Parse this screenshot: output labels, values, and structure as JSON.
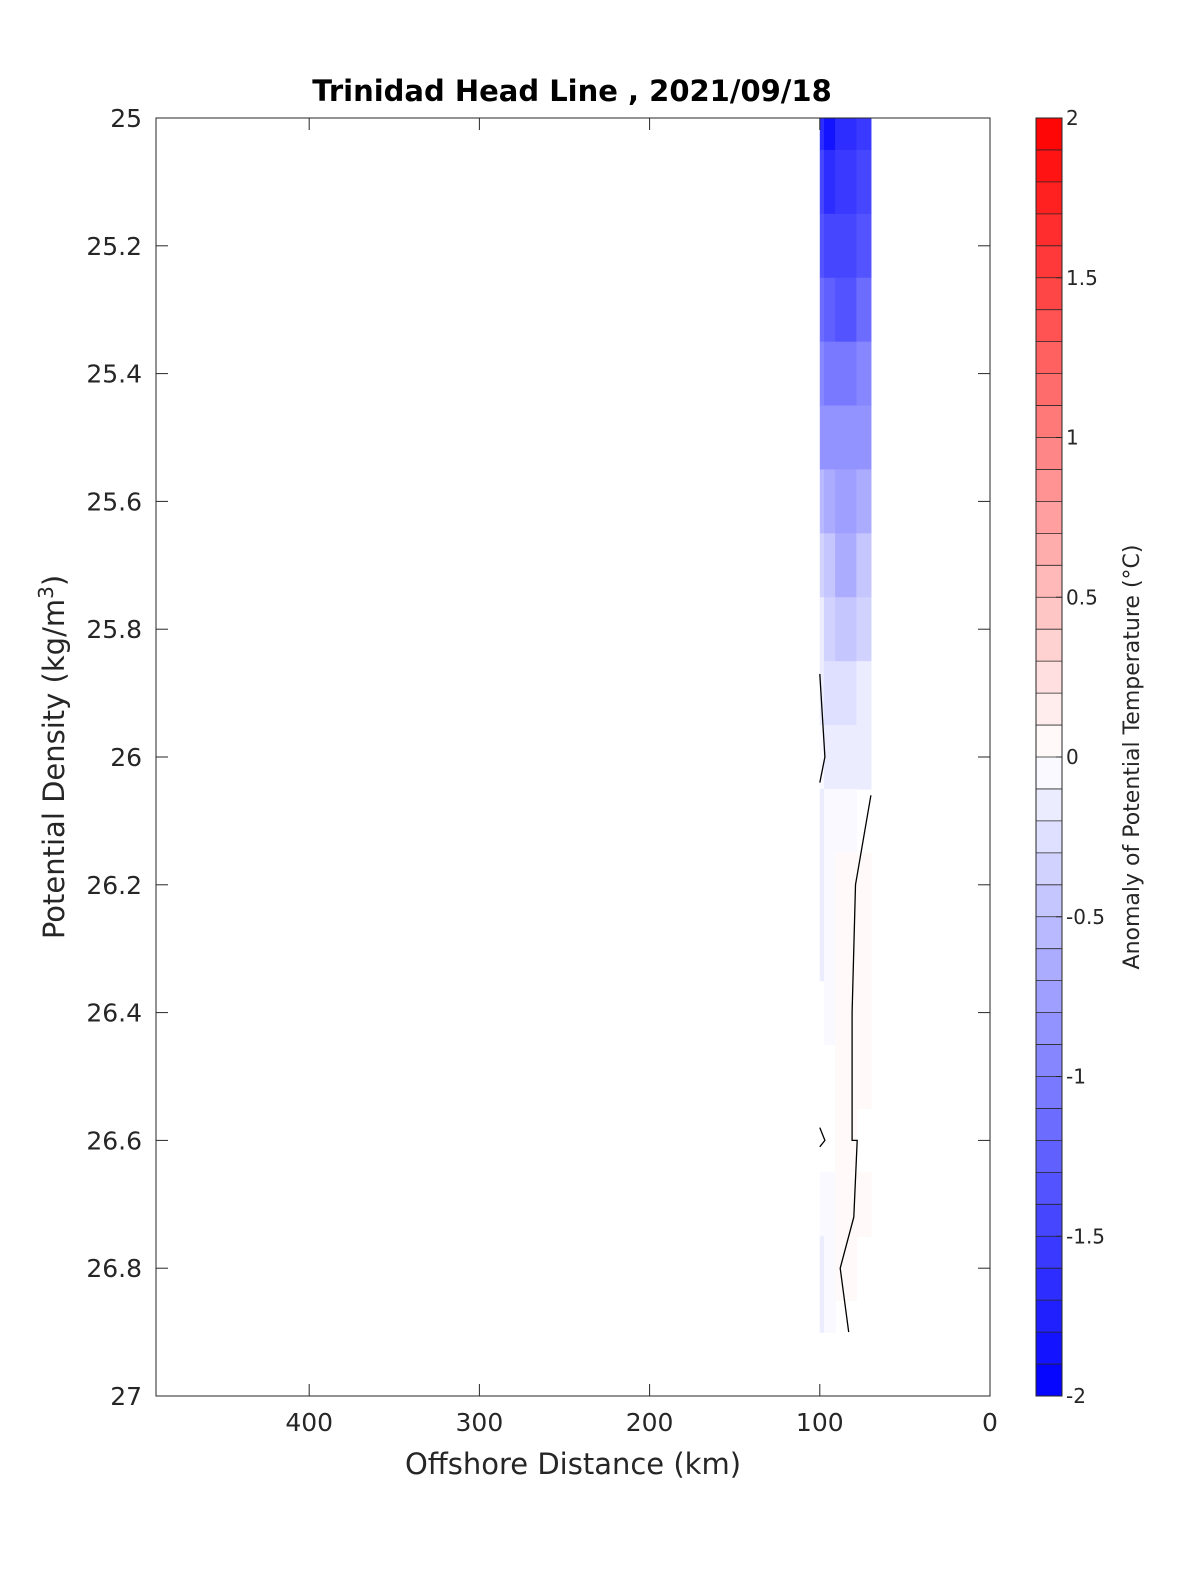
{
  "chart_data": {
    "type": "heatmap",
    "title": "Trinidad Head Line , 2021/09/18",
    "xlabel": "Offshore Distance (km)",
    "ylabel": "Potential Density (kg/m",
    "ylabel_sup": "3",
    "ylabel_close": ")",
    "xlim": [
      490,
      0
    ],
    "ylim": [
      25,
      27
    ],
    "x_reversed": true,
    "y_reversed": true,
    "x_ticks": [
      400,
      300,
      200,
      100,
      0
    ],
    "y_ticks": [
      25,
      25.2,
      25.4,
      25.6,
      25.8,
      26,
      26.2,
      26.4,
      26.6,
      26.8,
      27
    ],
    "colorbar": {
      "label": "Anomaly of Potential Temperature (°C)",
      "range": [
        -2,
        2
      ],
      "levels": 40,
      "ticks": [
        -2,
        -1.5,
        -1,
        -0.5,
        0,
        0.5,
        1,
        1.5,
        2
      ],
      "cold_color": "#0000ff",
      "warm_color": "#ff0000"
    },
    "grid": false,
    "anomaly_field": {
      "x_columns": [
        100,
        95,
        87,
        70
      ],
      "rows": [
        {
          "density": 25.0,
          "values": [
            -1.6,
            -1.9,
            -1.7,
            -1.55
          ]
        },
        {
          "density": 25.1,
          "values": [
            -1.5,
            -1.6,
            -1.55,
            -1.45
          ]
        },
        {
          "density": 25.2,
          "values": [
            -1.4,
            -1.45,
            -1.45,
            -1.3
          ]
        },
        {
          "density": 25.3,
          "values": [
            -1.2,
            -1.25,
            -1.3,
            -1.1
          ]
        },
        {
          "density": 25.4,
          "values": [
            -1.0,
            -1.05,
            -1.05,
            -0.95
          ]
        },
        {
          "density": 25.5,
          "values": [
            -0.8,
            -0.85,
            -0.9,
            -0.8
          ]
        },
        {
          "density": 25.6,
          "values": [
            -0.55,
            -0.65,
            -0.75,
            -0.65
          ]
        },
        {
          "density": 25.7,
          "values": [
            -0.35,
            -0.5,
            -0.6,
            -0.5
          ]
        },
        {
          "density": 25.8,
          "values": [
            -0.2,
            -0.35,
            -0.45,
            -0.35
          ]
        },
        {
          "density": 25.9,
          "values": [
            -0.12,
            -0.25,
            -0.3,
            -0.2
          ]
        },
        {
          "density": 26.0,
          "values": [
            -0.08,
            -0.15,
            -0.18,
            -0.1
          ]
        },
        {
          "density": 26.1,
          "values": [
            -0.1,
            -0.08,
            -0.05,
            null
          ]
        },
        {
          "density": 26.2,
          "values": [
            -0.12,
            -0.06,
            0.0,
            0.02
          ]
        },
        {
          "density": 26.3,
          "values": [
            -0.12,
            -0.05,
            0.0,
            0.06
          ]
        },
        {
          "density": 26.4,
          "values": [
            null,
            -0.02,
            0.0,
            0.04
          ]
        },
        {
          "density": 26.5,
          "values": [
            null,
            null,
            0.0,
            0.03
          ]
        },
        {
          "density": 26.6,
          "values": [
            null,
            null,
            0.0,
            null
          ]
        },
        {
          "density": 26.7,
          "values": [
            -0.06,
            -0.02,
            0.02,
            0.08
          ]
        },
        {
          "density": 26.8,
          "values": [
            -0.1,
            -0.05,
            0.04,
            null
          ]
        },
        {
          "density": 26.9,
          "values": [
            -0.1,
            -0.05,
            null,
            null
          ]
        }
      ]
    },
    "zero_contours": [
      [
        [
          100,
          25.87
        ],
        [
          97,
          26.0
        ],
        [
          100,
          26.04
        ]
      ],
      [
        [
          70,
          26.06
        ],
        [
          79,
          26.2
        ],
        [
          81,
          26.4
        ],
        [
          81,
          26.6
        ],
        [
          78,
          26.6
        ],
        [
          80,
          26.72
        ],
        [
          88,
          26.8
        ],
        [
          83,
          26.9
        ]
      ],
      [
        [
          100,
          26.58
        ],
        [
          97,
          26.6
        ],
        [
          100,
          26.61
        ]
      ]
    ]
  }
}
